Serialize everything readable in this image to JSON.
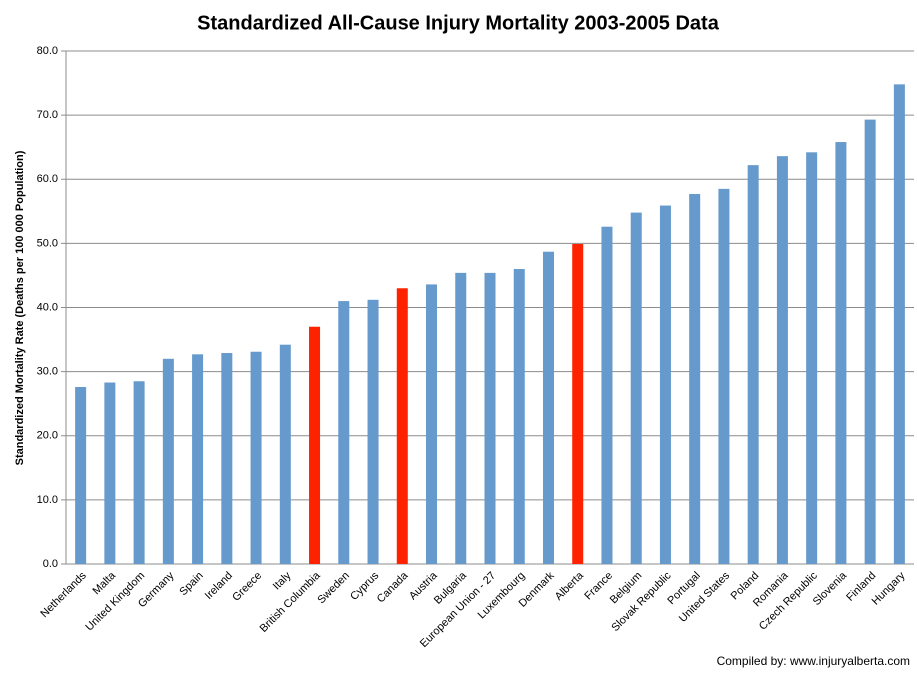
{
  "chart_data": {
    "type": "bar",
    "title": "Standardized All-Cause Injury Mortality 2003-2005 Data",
    "y_label": "Standardized Mortality Rate (Deaths per 100 000 Population)",
    "note": "Compiled by:  www.injuryalberta.com",
    "categories": [
      "Netherlands",
      "Malta",
      "United Kingdom",
      "Germany",
      "Spain",
      "Ireland",
      "Greece",
      "Italy",
      "British Columbia",
      "Sweden",
      "Cyprus",
      "Canada",
      "Austria",
      "Bulgaria",
      "European Union - 27",
      "Luxembourg",
      "Denmark",
      "Alberta",
      "France",
      "Belgium",
      "Slovak Republic",
      "Portugal",
      "United States",
      "Poland",
      "Romania",
      "Czech Republic",
      "Slovenia",
      "Finland",
      "Hungary"
    ],
    "values": [
      27.6,
      28.3,
      28.5,
      32.0,
      32.7,
      32.9,
      33.1,
      34.2,
      37.0,
      41.0,
      41.2,
      43.0,
      43.6,
      45.4,
      45.4,
      46.0,
      48.7,
      49.9,
      52.6,
      54.8,
      55.9,
      57.7,
      58.5,
      62.2,
      63.6,
      64.2,
      65.8,
      69.3,
      74.8
    ],
    "colors": [
      "#6699cc",
      "#6699cc",
      "#6699cc",
      "#6699cc",
      "#6699cc",
      "#6699cc",
      "#6699cc",
      "#6699cc",
      "#ff2200",
      "#6699cc",
      "#6699cc",
      "#ff2200",
      "#6699cc",
      "#6699cc",
      "#6699cc",
      "#6699cc",
      "#6699cc",
      "#ff2200",
      "#6699cc",
      "#6699cc",
      "#6699cc",
      "#6699cc",
      "#6699cc",
      "#6699cc",
      "#6699cc",
      "#6699cc",
      "#6699cc",
      "#6699cc",
      "#6699cc"
    ],
    "ylim": [
      0,
      80
    ],
    "yticks": [
      {
        "value": 0,
        "label": "0.0"
      },
      {
        "value": 10,
        "label": "10.0"
      },
      {
        "value": 20,
        "label": "20.0"
      },
      {
        "value": 30,
        "label": "30.0"
      },
      {
        "value": 40,
        "label": "40.0"
      },
      {
        "value": 50,
        "label": "50.0"
      },
      {
        "value": 60,
        "label": "60.0"
      },
      {
        "value": 70,
        "label": "70.0"
      },
      {
        "value": 80,
        "label": "80.0"
      }
    ],
    "grid": true
  }
}
